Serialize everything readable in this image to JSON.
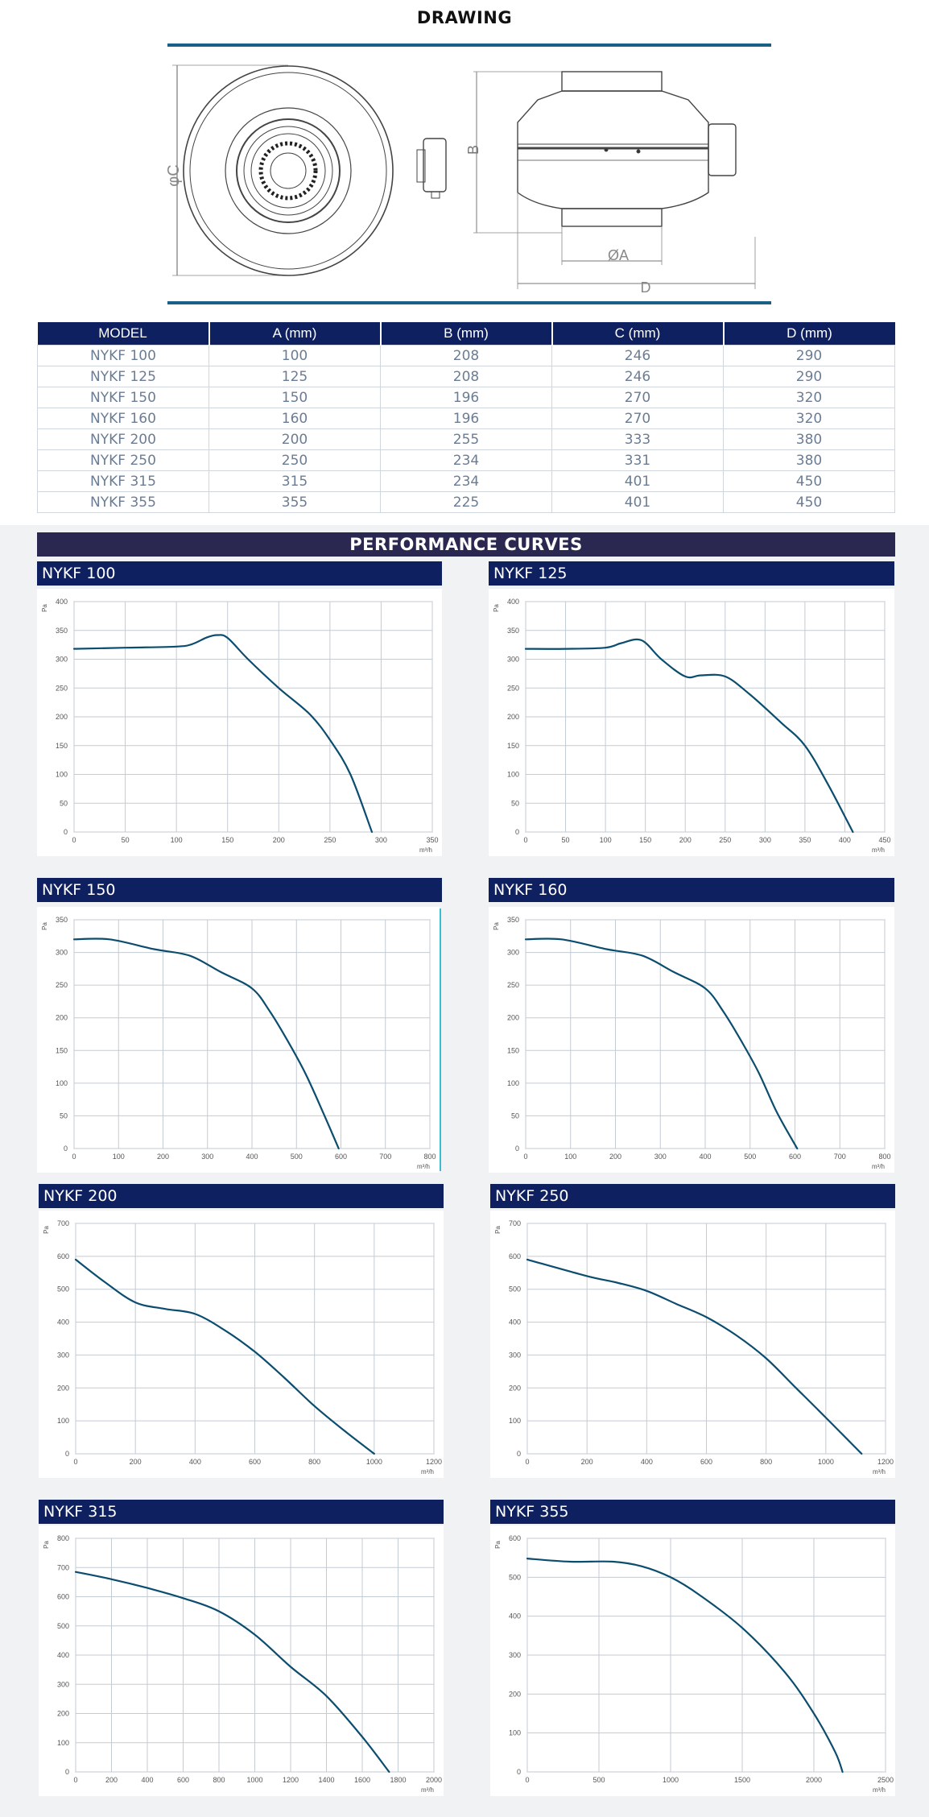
{
  "drawing": {
    "title": "DRAWING",
    "labels": {
      "c": "φC",
      "b": "B",
      "a": "ØA",
      "d": "D"
    }
  },
  "table": {
    "headers": [
      "MODEL",
      "A (mm)",
      "B (mm)",
      "C (mm)",
      "D (mm)"
    ],
    "rows": [
      [
        "NYKF 100",
        "100",
        "208",
        "246",
        "290"
      ],
      [
        "NYKF 125",
        "125",
        "208",
        "246",
        "290"
      ],
      [
        "NYKF 150",
        "150",
        "196",
        "270",
        "320"
      ],
      [
        "NYKF 160",
        "160",
        "196",
        "270",
        "320"
      ],
      [
        "NYKF 200",
        "200",
        "255",
        "333",
        "380"
      ],
      [
        "NYKF 250",
        "250",
        "234",
        "331",
        "380"
      ],
      [
        "NYKF 315",
        "315",
        "234",
        "401",
        "450"
      ],
      [
        "NYKF 355",
        "355",
        "225",
        "401",
        "450"
      ]
    ]
  },
  "performance": {
    "title": "PERFORMANCE CURVES"
  },
  "colors": {
    "navy": "#0f2060",
    "curve": "#0b4d6e",
    "grid": "#c3cbd3"
  },
  "chart_data": [
    {
      "type": "line",
      "title": "NYKF 100",
      "ylabel": "Pa",
      "xlabel": "m³/h",
      "xlim": [
        0,
        350
      ],
      "ylim": [
        0,
        400
      ],
      "xticks": [
        0,
        50,
        100,
        150,
        200,
        250,
        300,
        350
      ],
      "yticks": [
        0,
        50,
        100,
        150,
        200,
        250,
        300,
        350,
        400
      ],
      "x": [
        0,
        50,
        100,
        115,
        130,
        140,
        150,
        170,
        200,
        230,
        250,
        270,
        291
      ],
      "y": [
        318,
        320,
        322,
        326,
        338,
        342,
        337,
        300,
        250,
        205,
        160,
        100,
        0
      ]
    },
    {
      "type": "line",
      "title": "NYKF 125",
      "ylabel": "Pa",
      "xlabel": "m³/h",
      "xlim": [
        0,
        450
      ],
      "ylim": [
        0,
        400
      ],
      "xticks": [
        0,
        50,
        100,
        150,
        200,
        250,
        300,
        350,
        400,
        450
      ],
      "yticks": [
        0,
        50,
        100,
        150,
        200,
        250,
        300,
        350,
        400
      ],
      "x": [
        0,
        50,
        100,
        120,
        145,
        170,
        200,
        220,
        250,
        280,
        320,
        350,
        380,
        410
      ],
      "y": [
        318,
        318,
        320,
        328,
        333,
        300,
        270,
        272,
        270,
        240,
        190,
        150,
        80,
        0
      ]
    },
    {
      "type": "line",
      "title": "NYKF 150",
      "ylabel": "Pa",
      "xlabel": "m³/h",
      "xlim": [
        0,
        800
      ],
      "ylim": [
        0,
        350
      ],
      "xticks": [
        0,
        100,
        200,
        300,
        400,
        500,
        600,
        700,
        800
      ],
      "yticks": [
        0,
        50,
        100,
        150,
        200,
        250,
        300,
        350
      ],
      "x": [
        0,
        80,
        180,
        260,
        330,
        400,
        440,
        480,
        520,
        560,
        595
      ],
      "y": [
        320,
        320,
        305,
        295,
        270,
        245,
        210,
        165,
        115,
        55,
        0
      ]
    },
    {
      "type": "line",
      "title": "NYKF  160",
      "ylabel": "Pa",
      "xlabel": "m³/h",
      "xlim": [
        0,
        800
      ],
      "ylim": [
        0,
        350
      ],
      "xticks": [
        0,
        100,
        200,
        300,
        400,
        500,
        600,
        700,
        800
      ],
      "yticks": [
        0,
        50,
        100,
        150,
        200,
        250,
        300,
        350
      ],
      "x": [
        0,
        80,
        180,
        260,
        330,
        400,
        440,
        480,
        520,
        560,
        605
      ],
      "y": [
        320,
        320,
        305,
        295,
        270,
        245,
        210,
        165,
        115,
        55,
        0
      ]
    },
    {
      "type": "line",
      "title": "NYKF 200",
      "ylabel": "Pa",
      "xlabel": "m³/h",
      "xlim": [
        0,
        1200
      ],
      "ylim": [
        0,
        700
      ],
      "xticks": [
        0,
        200,
        400,
        600,
        800,
        1000,
        1200
      ],
      "yticks": [
        0,
        100,
        200,
        300,
        400,
        500,
        600,
        700
      ],
      "x": [
        0,
        100,
        200,
        300,
        400,
        500,
        600,
        700,
        800,
        900,
        1000
      ],
      "y": [
        590,
        520,
        460,
        440,
        425,
        375,
        310,
        230,
        145,
        70,
        0
      ]
    },
    {
      "type": "line",
      "title": "NYKF 250",
      "ylabel": "Pa",
      "xlabel": "m³/h",
      "xlim": [
        0,
        1200
      ],
      "ylim": [
        0,
        700
      ],
      "xticks": [
        0,
        200,
        400,
        600,
        800,
        1000,
        1200
      ],
      "yticks": [
        0,
        100,
        200,
        300,
        400,
        500,
        600,
        700
      ],
      "x": [
        0,
        200,
        300,
        400,
        500,
        600,
        700,
        800,
        900,
        1000,
        1120
      ],
      "y": [
        590,
        540,
        520,
        495,
        455,
        415,
        360,
        290,
        200,
        110,
        0
      ]
    },
    {
      "type": "line",
      "title": "NYKF 315",
      "ylabel": "Pa",
      "xlabel": "m³/h",
      "xlim": [
        0,
        2000
      ],
      "ylim": [
        0,
        800
      ],
      "xticks": [
        0,
        200,
        400,
        600,
        800,
        1000,
        1200,
        1400,
        1600,
        1800,
        2000
      ],
      "yticks": [
        0,
        100,
        200,
        300,
        400,
        500,
        600,
        700,
        800
      ],
      "x": [
        0,
        200,
        400,
        600,
        800,
        1000,
        1200,
        1400,
        1600,
        1750
      ],
      "y": [
        685,
        660,
        630,
        595,
        550,
        470,
        360,
        260,
        120,
        0
      ]
    },
    {
      "type": "line",
      "title": "NYKF 355",
      "ylabel": "Pa",
      "xlabel": "m³/h",
      "xlim": [
        0,
        2500
      ],
      "ylim": [
        0,
        600
      ],
      "xticks": [
        0,
        500,
        1000,
        1500,
        2000,
        2500
      ],
      "yticks": [
        0,
        100,
        200,
        300,
        400,
        500,
        600
      ],
      "x": [
        0,
        300,
        600,
        800,
        1000,
        1200,
        1500,
        1800,
        2000,
        2150,
        2200
      ],
      "y": [
        548,
        540,
        540,
        528,
        500,
        455,
        370,
        255,
        150,
        50,
        0
      ]
    }
  ]
}
